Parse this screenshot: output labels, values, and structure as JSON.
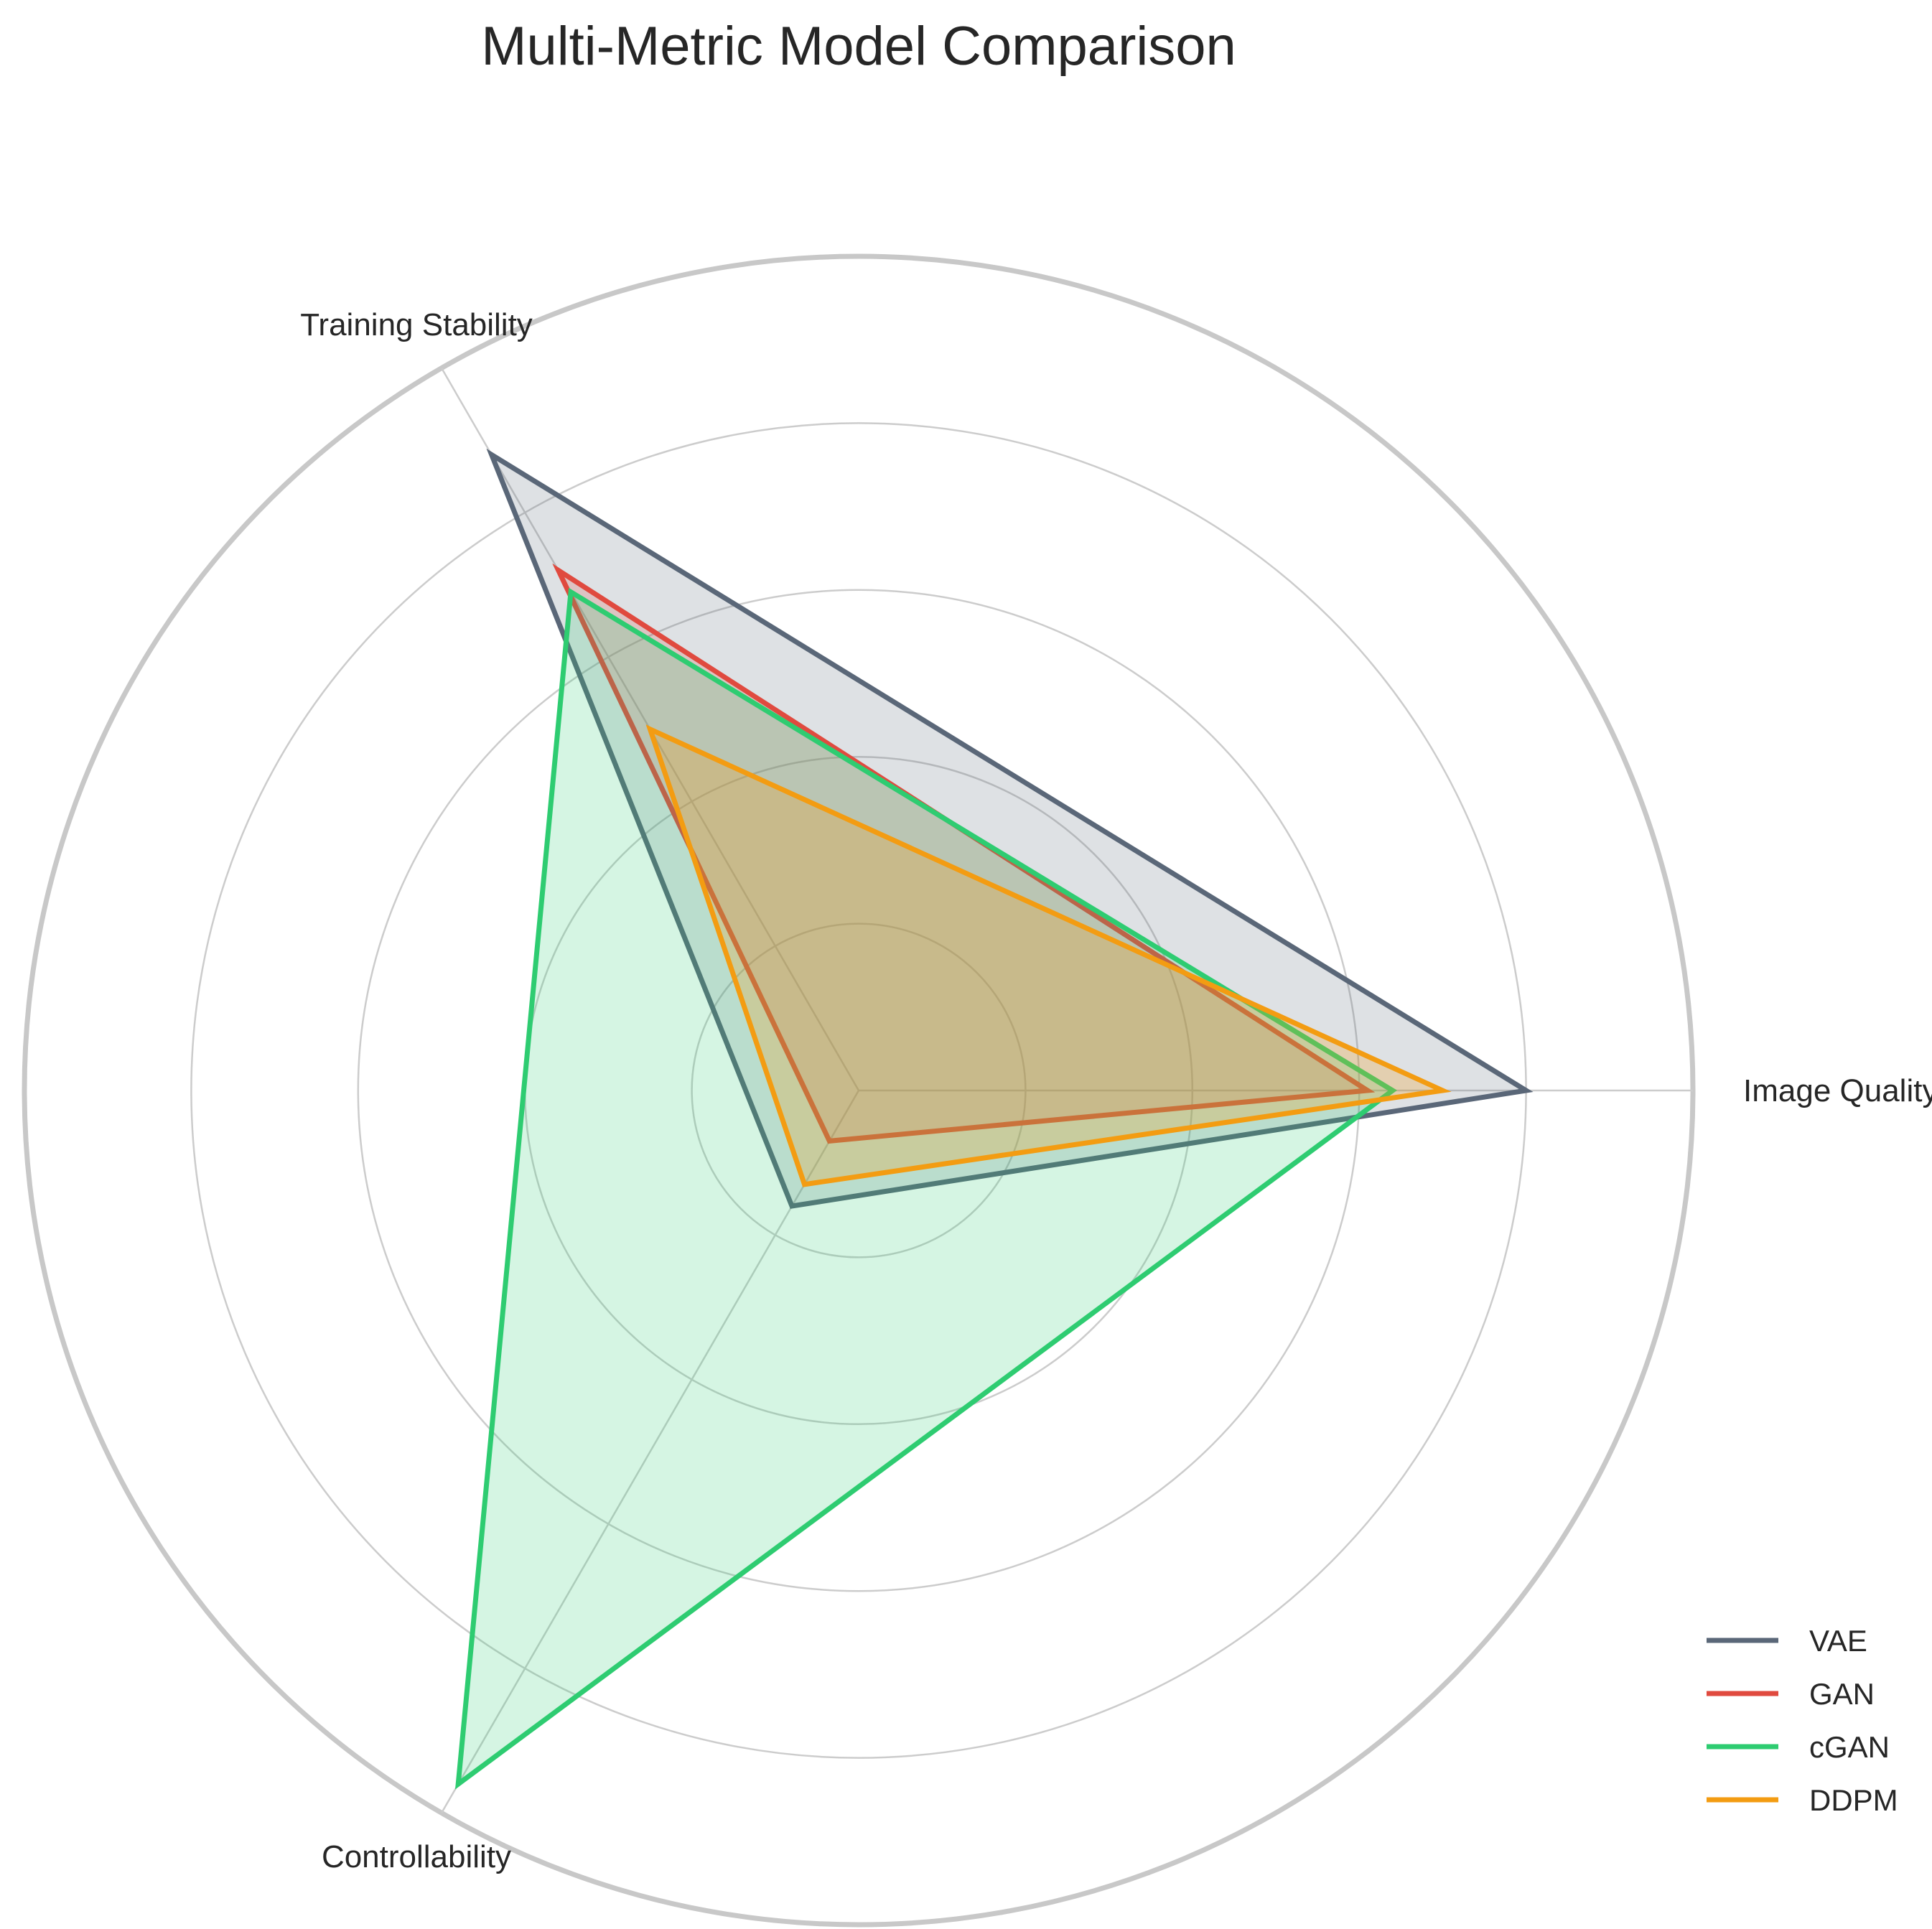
{
  "chart_data": {
    "type": "radar",
    "title": "Multi-Metric Model Comparison",
    "axes": [
      "Image Quality",
      "Training Stability",
      "Controllability"
    ],
    "rlim": [
      0,
      5
    ],
    "grid_levels": [
      1,
      2,
      3,
      4,
      5
    ],
    "grid": true,
    "radial_tick_labels_shown": false,
    "legend_position": "bottom-right",
    "series": [
      {
        "name": "VAE",
        "color": "#5a6778",
        "fill_opacity": 0.2,
        "values": [
          4.0,
          4.4,
          0.8
        ]
      },
      {
        "name": "GAN",
        "color": "#e04a3f",
        "fill_opacity": 0.2,
        "values": [
          3.05,
          3.6,
          0.35
        ]
      },
      {
        "name": "cGAN",
        "color": "#2ecc71",
        "fill_opacity": 0.2,
        "values": [
          3.2,
          3.45,
          4.8
        ]
      },
      {
        "name": "DDPM",
        "color": "#f39c12",
        "fill_opacity": 0.25,
        "values": [
          3.5,
          2.5,
          0.65
        ]
      }
    ]
  }
}
